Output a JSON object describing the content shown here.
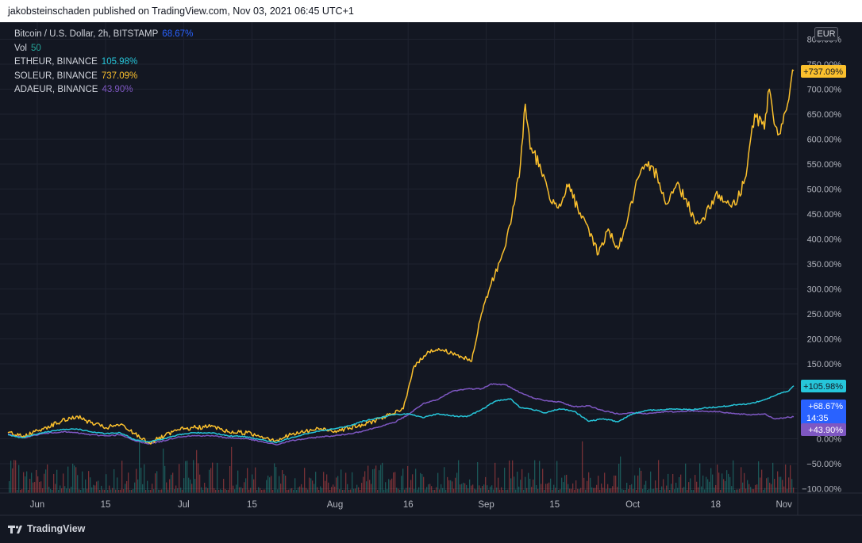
{
  "header": {
    "published_text": "jakobsteinschaden published on TradingView.com, Nov 03, 2021 06:45 UTC+1"
  },
  "brand": {
    "name": "TradingView",
    "logo_icon": "tradingview-logo-icon"
  },
  "currency_button": "EUR",
  "legend": [
    {
      "name": "Bitcoin / U.S. Dollar, 2h, BITSTAMP",
      "value": "68.67%",
      "color": "#2962ff"
    },
    {
      "name": "Vol",
      "value": "50",
      "color": "#26a69a"
    },
    {
      "name": "ETHEUR, BINANCE",
      "value": "105.98%",
      "color": "#26c6da"
    },
    {
      "name": "SOLEUR, BINANCE",
      "value": "737.09%",
      "color": "#fbc02d"
    },
    {
      "name": "ADAEUR, BINANCE",
      "value": "43.90%",
      "color": "#7e57c2"
    }
  ],
  "price_badges": [
    {
      "series": "SOLEUR",
      "text": "+737.09%",
      "value": 737.09,
      "color": "#fbc02d",
      "text_color": "#131722"
    },
    {
      "series": "ETHEUR",
      "text": "+105.98%",
      "value": 105.98,
      "color": "#26c6da",
      "text_color": "#131722"
    },
    {
      "series": "BTCUSD",
      "text": "+68.67%",
      "sub": "14:35",
      "value": 68.67,
      "color": "#2962ff",
      "text_color": "#ffffff"
    },
    {
      "series": "ADAEUR",
      "text": "+43.90%",
      "value": 43.9,
      "color": "#7e57c2",
      "text_color": "#ffffff"
    }
  ],
  "chart_data": {
    "type": "line",
    "title": "",
    "xlabel": "",
    "ylabel": "",
    "y_unit": "%",
    "ylim": [
      -100,
      800
    ],
    "y_ticks": [
      "800.00%",
      "750.00%",
      "700.00%",
      "650.00%",
      "600.00%",
      "550.00%",
      "500.00%",
      "450.00%",
      "400.00%",
      "350.00%",
      "300.00%",
      "250.00%",
      "200.00%",
      "150.00%",
      "100.00%",
      "50.00%",
      "0.00%",
      "−50.00%",
      "−100.00%"
    ],
    "y_tick_values": [
      800,
      750,
      700,
      650,
      600,
      550,
      500,
      450,
      400,
      350,
      300,
      250,
      200,
      150,
      100,
      50,
      0,
      -50,
      -100
    ],
    "x_range": [
      "2021-05-26",
      "2021-11-03"
    ],
    "x_ticks": [
      {
        "label": "Jun",
        "date": "2021-06-01"
      },
      {
        "label": "15",
        "date": "2021-06-15"
      },
      {
        "label": "Jul",
        "date": "2021-07-01"
      },
      {
        "label": "15",
        "date": "2021-07-15"
      },
      {
        "label": "Aug",
        "date": "2021-08-01"
      },
      {
        "label": "16",
        "date": "2021-08-16"
      },
      {
        "label": "Sep",
        "date": "2021-09-01"
      },
      {
        "label": "15",
        "date": "2021-09-15"
      },
      {
        "label": "Oct",
        "date": "2021-10-01"
      },
      {
        "label": "18",
        "date": "2021-10-18"
      },
      {
        "label": "Nov",
        "date": "2021-11-01"
      }
    ],
    "grid": true,
    "series": [
      {
        "name": "SOLEUR, BINANCE",
        "color": "#fbc02d",
        "points": [
          [
            "2021-05-26",
            12
          ],
          [
            "2021-05-29",
            4
          ],
          [
            "2021-06-02",
            20
          ],
          [
            "2021-06-06",
            35
          ],
          [
            "2021-06-09",
            45
          ],
          [
            "2021-06-12",
            32
          ],
          [
            "2021-06-15",
            22
          ],
          [
            "2021-06-18",
            28
          ],
          [
            "2021-06-21",
            10
          ],
          [
            "2021-06-24",
            -8
          ],
          [
            "2021-06-27",
            5
          ],
          [
            "2021-06-30",
            18
          ],
          [
            "2021-07-03",
            22
          ],
          [
            "2021-07-07",
            25
          ],
          [
            "2021-07-10",
            14
          ],
          [
            "2021-07-14",
            12
          ],
          [
            "2021-07-17",
            5
          ],
          [
            "2021-07-20",
            -3
          ],
          [
            "2021-07-23",
            8
          ],
          [
            "2021-07-26",
            15
          ],
          [
            "2021-07-29",
            20
          ],
          [
            "2021-08-01",
            16
          ],
          [
            "2021-08-04",
            22
          ],
          [
            "2021-08-07",
            28
          ],
          [
            "2021-08-10",
            40
          ],
          [
            "2021-08-13",
            50
          ],
          [
            "2021-08-15",
            60
          ],
          [
            "2021-08-17",
            140
          ],
          [
            "2021-08-20",
            175
          ],
          [
            "2021-08-23",
            178
          ],
          [
            "2021-08-26",
            168
          ],
          [
            "2021-08-29",
            155
          ],
          [
            "2021-08-31",
            250
          ],
          [
            "2021-09-02",
            310
          ],
          [
            "2021-09-04",
            360
          ],
          [
            "2021-09-06",
            430
          ],
          [
            "2021-09-08",
            550
          ],
          [
            "2021-09-09",
            670
          ],
          [
            "2021-09-10",
            580
          ],
          [
            "2021-09-12",
            550
          ],
          [
            "2021-09-14",
            480
          ],
          [
            "2021-09-16",
            470
          ],
          [
            "2021-09-18",
            510
          ],
          [
            "2021-09-20",
            450
          ],
          [
            "2021-09-22",
            420
          ],
          [
            "2021-09-24",
            370
          ],
          [
            "2021-09-26",
            420
          ],
          [
            "2021-09-28",
            380
          ],
          [
            "2021-09-30",
            440
          ],
          [
            "2021-10-02",
            520
          ],
          [
            "2021-10-04",
            545
          ],
          [
            "2021-10-06",
            530
          ],
          [
            "2021-10-08",
            470
          ],
          [
            "2021-10-10",
            510
          ],
          [
            "2021-10-12",
            480
          ],
          [
            "2021-10-14",
            430
          ],
          [
            "2021-10-16",
            450
          ],
          [
            "2021-10-18",
            490
          ],
          [
            "2021-10-20",
            475
          ],
          [
            "2021-10-22",
            468
          ],
          [
            "2021-10-24",
            520
          ],
          [
            "2021-10-26",
            650
          ],
          [
            "2021-10-28",
            620
          ],
          [
            "2021-10-29",
            700
          ],
          [
            "2021-10-30",
            630
          ],
          [
            "2021-10-31",
            610
          ],
          [
            "2021-11-01",
            650
          ],
          [
            "2021-11-02",
            680
          ],
          [
            "2021-11-03",
            737.09
          ]
        ]
      },
      {
        "name": "ETHEUR, BINANCE",
        "color": "#26c6da",
        "points": [
          [
            "2021-05-26",
            8
          ],
          [
            "2021-05-29",
            2
          ],
          [
            "2021-06-02",
            12
          ],
          [
            "2021-06-06",
            18
          ],
          [
            "2021-06-09",
            20
          ],
          [
            "2021-06-12",
            14
          ],
          [
            "2021-06-15",
            10
          ],
          [
            "2021-06-18",
            12
          ],
          [
            "2021-06-21",
            -2
          ],
          [
            "2021-06-24",
            -6
          ],
          [
            "2021-06-27",
            0
          ],
          [
            "2021-06-30",
            8
          ],
          [
            "2021-07-03",
            12
          ],
          [
            "2021-07-07",
            12
          ],
          [
            "2021-07-10",
            6
          ],
          [
            "2021-07-14",
            4
          ],
          [
            "2021-07-17",
            -2
          ],
          [
            "2021-07-20",
            -8
          ],
          [
            "2021-07-23",
            2
          ],
          [
            "2021-07-26",
            10
          ],
          [
            "2021-07-29",
            16
          ],
          [
            "2021-08-01",
            20
          ],
          [
            "2021-08-04",
            26
          ],
          [
            "2021-08-07",
            36
          ],
          [
            "2021-08-10",
            42
          ],
          [
            "2021-08-13",
            48
          ],
          [
            "2021-08-16",
            50
          ],
          [
            "2021-08-19",
            42
          ],
          [
            "2021-08-22",
            50
          ],
          [
            "2021-08-25",
            46
          ],
          [
            "2021-08-28",
            44
          ],
          [
            "2021-08-31",
            58
          ],
          [
            "2021-09-03",
            76
          ],
          [
            "2021-09-06",
            80
          ],
          [
            "2021-09-08",
            62
          ],
          [
            "2021-09-10",
            60
          ],
          [
            "2021-09-13",
            52
          ],
          [
            "2021-09-16",
            60
          ],
          [
            "2021-09-19",
            55
          ],
          [
            "2021-09-22",
            35
          ],
          [
            "2021-09-25",
            40
          ],
          [
            "2021-09-28",
            34
          ],
          [
            "2021-10-01",
            50
          ],
          [
            "2021-10-04",
            57
          ],
          [
            "2021-10-07",
            58
          ],
          [
            "2021-10-10",
            60
          ],
          [
            "2021-10-13",
            58
          ],
          [
            "2021-10-16",
            62
          ],
          [
            "2021-10-19",
            64
          ],
          [
            "2021-10-22",
            68
          ],
          [
            "2021-10-25",
            70
          ],
          [
            "2021-10-28",
            78
          ],
          [
            "2021-10-31",
            90
          ],
          [
            "2021-11-02",
            96
          ],
          [
            "2021-11-03",
            105.98
          ]
        ]
      },
      {
        "name": "ADAEUR, BINANCE",
        "color": "#7e57c2",
        "points": [
          [
            "2021-05-26",
            10
          ],
          [
            "2021-05-29",
            2
          ],
          [
            "2021-06-02",
            10
          ],
          [
            "2021-06-06",
            14
          ],
          [
            "2021-06-09",
            12
          ],
          [
            "2021-06-12",
            8
          ],
          [
            "2021-06-15",
            6
          ],
          [
            "2021-06-18",
            8
          ],
          [
            "2021-06-21",
            -4
          ],
          [
            "2021-06-24",
            -10
          ],
          [
            "2021-06-27",
            -4
          ],
          [
            "2021-06-30",
            4
          ],
          [
            "2021-07-03",
            6
          ],
          [
            "2021-07-07",
            6
          ],
          [
            "2021-07-10",
            2
          ],
          [
            "2021-07-14",
            0
          ],
          [
            "2021-07-17",
            -6
          ],
          [
            "2021-07-20",
            -12
          ],
          [
            "2021-07-23",
            -4
          ],
          [
            "2021-07-26",
            0
          ],
          [
            "2021-07-29",
            4
          ],
          [
            "2021-08-01",
            6
          ],
          [
            "2021-08-04",
            10
          ],
          [
            "2021-08-07",
            16
          ],
          [
            "2021-08-10",
            24
          ],
          [
            "2021-08-13",
            32
          ],
          [
            "2021-08-16",
            48
          ],
          [
            "2021-08-19",
            70
          ],
          [
            "2021-08-22",
            78
          ],
          [
            "2021-08-25",
            95
          ],
          [
            "2021-08-28",
            100
          ],
          [
            "2021-08-31",
            100
          ],
          [
            "2021-09-02",
            110
          ],
          [
            "2021-09-05",
            108
          ],
          [
            "2021-09-08",
            92
          ],
          [
            "2021-09-10",
            84
          ],
          [
            "2021-09-13",
            76
          ],
          [
            "2021-09-16",
            74
          ],
          [
            "2021-09-19",
            64
          ],
          [
            "2021-09-22",
            66
          ],
          [
            "2021-09-25",
            56
          ],
          [
            "2021-09-28",
            50
          ],
          [
            "2021-10-01",
            52
          ],
          [
            "2021-10-04",
            50
          ],
          [
            "2021-10-07",
            54
          ],
          [
            "2021-10-10",
            54
          ],
          [
            "2021-10-13",
            56
          ],
          [
            "2021-10-16",
            55
          ],
          [
            "2021-10-19",
            54
          ],
          [
            "2021-10-22",
            50
          ],
          [
            "2021-10-25",
            48
          ],
          [
            "2021-10-28",
            50
          ],
          [
            "2021-10-30",
            40
          ],
          [
            "2021-11-01",
            42
          ],
          [
            "2021-11-03",
            43.9
          ]
        ]
      },
      {
        "name": "Bitcoin / U.S. Dollar, 2h, BITSTAMP",
        "color": "#2962ff",
        "points": [
          [
            "2021-11-03",
            68.67
          ]
        ]
      }
    ],
    "volume": {
      "name": "Vol",
      "length": "50",
      "up_color": "#26a69a",
      "down_color": "#ef5350"
    }
  }
}
